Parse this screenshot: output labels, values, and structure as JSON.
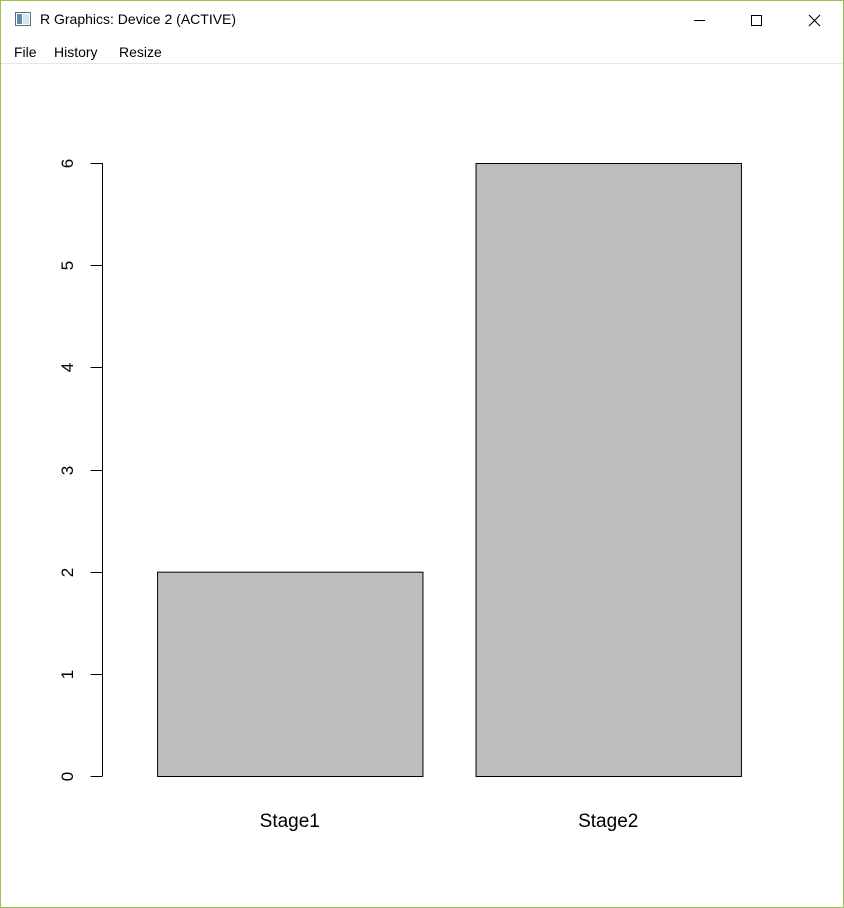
{
  "window": {
    "title": "R Graphics: Device 2 (ACTIVE)",
    "icon": "r-graphics-app-icon",
    "controls": {
      "minimize_icon": "minimize-icon",
      "maximize_icon": "maximize-icon",
      "close_icon": "close-icon"
    },
    "border_color": "#9ac24d"
  },
  "menu": {
    "items": [
      {
        "label": "File"
      },
      {
        "label": "History"
      },
      {
        "label": "Resize"
      }
    ]
  },
  "chart_data": {
    "type": "bar",
    "categories": [
      "Stage1",
      "Stage2"
    ],
    "values": [
      2,
      6
    ],
    "title": "",
    "xlabel": "",
    "ylabel": "",
    "ylim": [
      0,
      6
    ],
    "yticks": [
      0,
      1,
      2,
      3,
      4,
      5,
      6
    ],
    "ytick_labels": [
      "0",
      "1",
      "2",
      "3",
      "4",
      "5",
      "6"
    ],
    "bar_color": "#bebebe",
    "bar_edge_color": "#000000",
    "grid": false,
    "legend": "none"
  }
}
